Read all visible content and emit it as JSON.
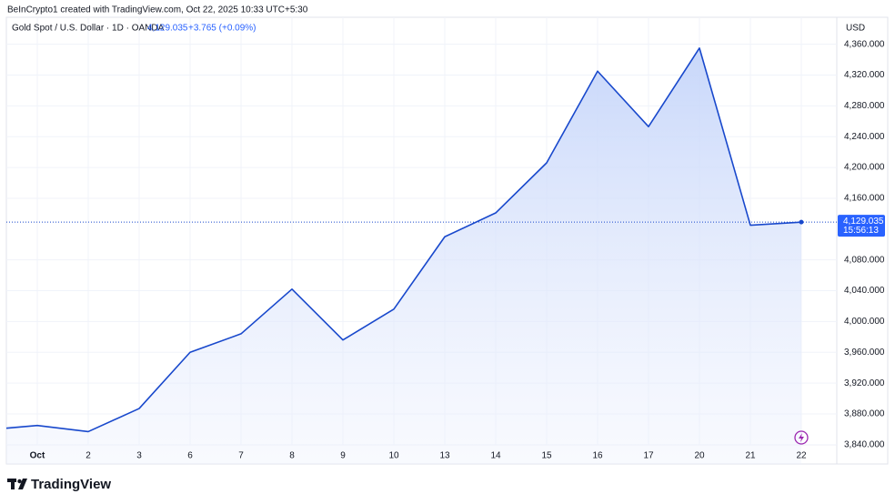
{
  "header": "BeInCrypto1 created with TradingView.com, Oct 22, 2025 10:33 UTC+5:30",
  "brand": "TradingView",
  "chart_data": {
    "type": "area",
    "title": "Gold Spot / U.S. Dollar · 1D · OANDA",
    "currency": "USD",
    "price": {
      "last": "4,129.035",
      "change": "+3.765 (+0.09%)",
      "countdown": "15:56:13"
    },
    "categories": [
      "Oct",
      "2",
      "3",
      "6",
      "7",
      "8",
      "9",
      "10",
      "13",
      "14",
      "15",
      "16",
      "17",
      "20",
      "21",
      "22"
    ],
    "values": [
      3865,
      3857,
      3887,
      3960,
      3984,
      4042,
      3976,
      4016,
      4110,
      4141,
      4206,
      4325,
      4253,
      4355,
      4125,
      4129.035
    ],
    "color": "#1848cc",
    "ylim": [
      3815,
      4395
    ],
    "yticks": [
      {
        "value": 3840,
        "label": "3,840.000"
      },
      {
        "value": 3880,
        "label": "3,880.000"
      },
      {
        "value": 3920,
        "label": "3,920.000"
      },
      {
        "value": 3960,
        "label": "3,960.000"
      },
      {
        "value": 4000,
        "label": "4,000.000"
      },
      {
        "value": 4040,
        "label": "4,040.000"
      },
      {
        "value": 4080,
        "label": "4,080.000"
      },
      {
        "value": 4160,
        "label": "4,160.000"
      },
      {
        "value": 4200,
        "label": "4,200.000"
      },
      {
        "value": 4240,
        "label": "4,240.000"
      },
      {
        "value": 4280,
        "label": "4,280.000"
      },
      {
        "value": 4320,
        "label": "4,320.000"
      },
      {
        "value": 4360,
        "label": "4,360.000"
      }
    ],
    "grid": true
  }
}
